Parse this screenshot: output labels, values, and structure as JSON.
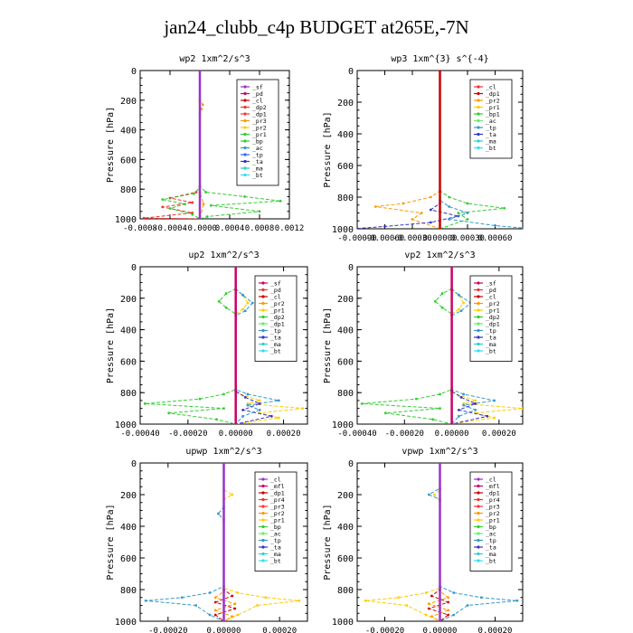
{
  "title": "jan24_clubb_c4p  BUDGET at265E,-7N",
  "chart_data": [
    {
      "type": "line",
      "title": "wp2  1xm^2/s^3",
      "ylabel": "Pressure [hPa]",
      "ylim": [
        1000,
        0
      ],
      "xlim": [
        -0.0008,
        0.0012
      ],
      "xticks": [
        -0.0008,
        -0.0004,
        0.0,
        0.0004,
        0.0008,
        0.0012
      ],
      "xtick_labels": [
        "-0.0008",
        "-0.0004",
        "-0.0000",
        "0.0004",
        "0.0008",
        "0.0012"
      ],
      "yticks": [
        0,
        200,
        400,
        600,
        800,
        1000
      ],
      "ytick_labels": [
        "0",
        "200",
        "400",
        "600",
        "800",
        "1000"
      ],
      "legend": [
        "_sf",
        "_pd",
        "_cl",
        "_dp2",
        "_dp1",
        "_pr3",
        "_pr2",
        "_pr1",
        "_bp",
        "_ac",
        "_tp",
        "_ta",
        "_ma",
        "_bt"
      ],
      "legend_colors": [
        "#9933cc",
        "#cc0066",
        "#cc0000",
        "#ee3333",
        "#ff3333",
        "#ff9900",
        "#ffcc00",
        "#33cc33",
        "#33cc33",
        "#3399cc",
        "#3366ff",
        "#3333cc",
        "#33cccc",
        "#33ddee"
      ],
      "series": [
        {
          "name": "_dp2",
          "color": "#ee3333",
          "x": [
            0,
            0,
            -5e-05,
            -0.0004,
            -0.0001,
            -0.0005,
            -0.0001,
            -0.00075,
            0
          ],
          "y": [
            0,
            780,
            820,
            860,
            890,
            920,
            960,
            995,
            1000
          ]
        },
        {
          "name": "_pr1",
          "color": "#33cc33",
          "x": [
            0,
            0,
            8e-05,
            0.0006,
            0.00108,
            0.00015,
            0.0008,
            0.0001,
            0
          ],
          "y": [
            0,
            780,
            820,
            850,
            880,
            910,
            950,
            985,
            1000
          ]
        },
        {
          "name": "_bp",
          "color": "#33cc33",
          "x": [
            0,
            0,
            -8e-05,
            -0.0005,
            -0.0002,
            -0.0004,
            -0.0001,
            0
          ],
          "y": [
            0,
            790,
            830,
            870,
            900,
            930,
            970,
            1000
          ]
        },
        {
          "name": "_pr3",
          "color": "#ff9900",
          "x": [
            0,
            0,
            4e-05,
            2e-05,
            0,
            0,
            5e-05,
            0
          ],
          "y": [
            0,
            200,
            230,
            260,
            290,
            820,
            900,
            1000
          ]
        },
        {
          "name": "_sf",
          "color": "#9933cc",
          "x": [
            0,
            0
          ],
          "y": [
            0,
            1000
          ]
        }
      ]
    },
    {
      "type": "line",
      "title": "wp3  1xm^{3} s^{-4}",
      "ylabel": "Pressure [hPa]",
      "ylim": [
        1000,
        0
      ],
      "xlim": [
        -0.0009,
        0.0009
      ],
      "xticks": [
        -0.0009,
        -0.0006,
        -0.0003,
        0.0,
        0.0003,
        0.0006
      ],
      "xtick_labels": [
        "-0.00090",
        "-0.00060",
        "-0.00030",
        "0.00000",
        "0.00030",
        "0.00060"
      ],
      "yticks": [
        0,
        200,
        400,
        600,
        800,
        1000
      ],
      "ytick_labels": [
        "0",
        "200",
        "400",
        "600",
        "800",
        "1000"
      ],
      "legend": [
        "_cl",
        "_dp1",
        "_pr2",
        "_pr1",
        "_bp1",
        "_ac",
        "_tp",
        "_ta",
        "_ma",
        "_bt"
      ],
      "legend_colors": [
        "#ee3333",
        "#cc0000",
        "#ff9900",
        "#ffcc00",
        "#33cc33",
        "#66ee66",
        "#3399cc",
        "#3333cc",
        "#33cccc",
        "#33ddee"
      ],
      "series": [
        {
          "name": "_pr1",
          "color": "#33cc33",
          "x": [
            0,
            0,
            0.0001,
            0.0003,
            0.0007,
            0.0002,
            0.0003,
            0
          ],
          "y": [
            0,
            760,
            800,
            840,
            870,
            900,
            940,
            1000
          ]
        },
        {
          "name": "_pr2",
          "color": "#ff9900",
          "x": [
            0,
            0,
            -0.0001,
            -0.0004,
            -0.0007,
            -0.0002,
            -0.0003,
            0
          ],
          "y": [
            0,
            760,
            800,
            840,
            860,
            900,
            940,
            1000
          ]
        },
        {
          "name": "_ta",
          "color": "#3333cc",
          "x": [
            0,
            0,
            -0.0001,
            0.0002,
            -0.0001,
            -0.0006,
            -0.0009
          ],
          "y": [
            0,
            840,
            880,
            920,
            960,
            985,
            998
          ]
        },
        {
          "name": "_tp",
          "color": "#3399cc",
          "x": [
            0,
            0,
            0.0001,
            0.0003,
            0.0001,
            0.0006,
            0.0009
          ],
          "y": [
            0,
            820,
            860,
            900,
            940,
            980,
            995
          ]
        },
        {
          "name": "_cl",
          "color": "#cc0000",
          "x": [
            0,
            0
          ],
          "y": [
            0,
            1000
          ]
        }
      ]
    },
    {
      "type": "line",
      "title": "up2  1xm^2/s^3",
      "ylabel": "Pressure [hPa]",
      "ylim": [
        1000,
        0
      ],
      "xlim": [
        -0.0004,
        0.0003
      ],
      "xticks": [
        -0.0004,
        -0.0002,
        0.0,
        0.0002
      ],
      "xtick_labels": [
        "-0.00040",
        "-0.00020",
        "0.00000",
        "0.00020"
      ],
      "yticks": [
        0,
        200,
        400,
        600,
        800,
        1000
      ],
      "ytick_labels": [
        "0",
        "200",
        "400",
        "600",
        "800",
        "1000"
      ],
      "legend": [
        "_sf",
        "_pd",
        "_cl",
        "_pr2",
        "_pr1",
        "_dp2",
        "_dp1",
        "_tp",
        "_ta",
        "_ma",
        "_bt"
      ],
      "legend_colors": [
        "#cc0066",
        "#ee3333",
        "#cc0000",
        "#ff9900",
        "#ffcc00",
        "#33cc33",
        "#66ee66",
        "#3399cc",
        "#3333cc",
        "#33cccc",
        "#33ddee"
      ],
      "series": [
        {
          "name": "_dp2",
          "color": "#33cc33",
          "x": [
            0,
            0,
            -4e-05,
            -7e-05,
            -4e-05,
            0,
            0,
            -5e-05,
            -0.00015,
            -0.00038,
            -5e-05,
            -0.00028,
            -8e-05,
            0
          ],
          "y": [
            0,
            140,
            170,
            220,
            260,
            300,
            780,
            810,
            840,
            870,
            900,
            930,
            970,
            1000
          ]
        },
        {
          "name": "_pr1",
          "color": "#ffcc00",
          "x": [
            0,
            0,
            3e-05,
            5e-05,
            3e-05,
            0,
            0,
            0.0001,
            5e-05,
            0.00028,
            0.0001,
            0.00018,
            0
          ],
          "y": [
            0,
            150,
            180,
            230,
            270,
            300,
            800,
            850,
            870,
            900,
            930,
            960,
            1000
          ]
        },
        {
          "name": "_tp",
          "color": "#3399cc",
          "x": [
            0,
            0,
            3e-05,
            7e-05,
            4e-05,
            0,
            0,
            5e-05,
            0.00018,
            5e-05,
            0.0001,
            3e-05,
            0
          ],
          "y": [
            0,
            140,
            180,
            230,
            280,
            310,
            780,
            810,
            850,
            880,
            910,
            950,
            1000
          ]
        },
        {
          "name": "_ta",
          "color": "#3333cc",
          "x": [
            0,
            0,
            4e-05,
            0.0001,
            3e-05,
            0.00015,
            0
          ],
          "y": [
            0,
            790,
            830,
            870,
            910,
            950,
            1000
          ]
        },
        {
          "name": "_sf",
          "color": "#cc0066",
          "x": [
            0,
            0
          ],
          "y": [
            0,
            1000
          ]
        }
      ]
    },
    {
      "type": "line",
      "title": "vp2  1xm^2/s^3",
      "ylabel": "Pressure [hPa]",
      "ylim": [
        1000,
        0
      ],
      "xlim": [
        -0.0004,
        0.0003
      ],
      "xticks": [
        -0.0004,
        -0.0002,
        0.0,
        0.0002
      ],
      "xtick_labels": [
        "-0.00040",
        "-0.00020",
        "0.00000",
        "0.00020"
      ],
      "yticks": [
        0,
        200,
        400,
        600,
        800,
        1000
      ],
      "ytick_labels": [
        "0",
        "200",
        "400",
        "600",
        "800",
        "1000"
      ],
      "legend": [
        "_sf",
        "_pd",
        "_cl",
        "_pr2",
        "_pr1",
        "_dp2",
        "_dp1",
        "_tp",
        "_ta",
        "_ma",
        "_bt"
      ],
      "legend_colors": [
        "#cc0066",
        "#ee3333",
        "#cc0000",
        "#ff9900",
        "#ffcc00",
        "#33cc33",
        "#66ee66",
        "#3399cc",
        "#3333cc",
        "#33cccc",
        "#33ddee"
      ],
      "series": [
        {
          "name": "_dp2",
          "color": "#33cc33",
          "x": [
            0,
            0,
            -4e-05,
            -7e-05,
            -4e-05,
            0,
            0,
            -5e-05,
            -0.00015,
            -0.00038,
            -5e-05,
            -0.00028,
            -8e-05,
            0
          ],
          "y": [
            0,
            140,
            170,
            220,
            260,
            300,
            780,
            810,
            840,
            870,
            900,
            930,
            970,
            1000
          ]
        },
        {
          "name": "_pr1",
          "color": "#ffcc00",
          "x": [
            0,
            0,
            3e-05,
            5e-05,
            3e-05,
            0,
            0,
            0.0001,
            5e-05,
            0.0003,
            0.0001,
            0.00018,
            0
          ],
          "y": [
            0,
            150,
            180,
            230,
            270,
            300,
            800,
            850,
            870,
            900,
            930,
            960,
            1000
          ]
        },
        {
          "name": "_tp",
          "color": "#3399cc",
          "x": [
            0,
            0,
            3e-05,
            8e-05,
            4e-05,
            0,
            0,
            5e-05,
            0.00018,
            5e-05,
            0.0001,
            3e-05,
            0
          ],
          "y": [
            0,
            140,
            180,
            230,
            280,
            310,
            780,
            810,
            850,
            880,
            910,
            950,
            1000
          ]
        },
        {
          "name": "_ta",
          "color": "#3333cc",
          "x": [
            0,
            0,
            4e-05,
            0.0001,
            3e-05,
            0.00015,
            0
          ],
          "y": [
            0,
            790,
            830,
            870,
            910,
            950,
            1000
          ]
        },
        {
          "name": "_sf",
          "color": "#cc0066",
          "x": [
            0,
            0
          ],
          "y": [
            0,
            1000
          ]
        }
      ]
    },
    {
      "type": "line",
      "title": "upwp  1xm^2/s^3",
      "ylabel": "Pressure [hPa]",
      "ylim": [
        1000,
        0
      ],
      "xlim": [
        -0.0003,
        0.0003
      ],
      "xticks": [
        -0.0002,
        0.0,
        0.0002
      ],
      "xtick_labels": [
        "-0.00020",
        "0.00000",
        "0.00020"
      ],
      "yticks": [
        0,
        200,
        400,
        600,
        800,
        1000
      ],
      "ytick_labels": [
        "0",
        "200",
        "400",
        "600",
        "800",
        "1000"
      ],
      "legend": [
        "_cl",
        "_mfl",
        "_dp1",
        "_pr4",
        "_pr3",
        "_pr2",
        "_pr1",
        "_bp",
        "_ac",
        "_tp",
        "_ta",
        "_ma",
        "_bt"
      ],
      "legend_colors": [
        "#9933cc",
        "#cc0066",
        "#cc0000",
        "#ee3333",
        "#ff3333",
        "#ff9900",
        "#ffcc00",
        "#33cc33",
        "#66ee66",
        "#3399cc",
        "#3333cc",
        "#33cccc",
        "#33ddee"
      ],
      "series": [
        {
          "name": "_tp",
          "color": "#3399cc",
          "x": [
            0,
            0,
            -2e-05,
            0,
            0,
            -5e-05,
            -0.00015,
            -0.00028,
            -0.0001,
            -5e-05,
            0
          ],
          "y": [
            0,
            280,
            320,
            360,
            780,
            820,
            850,
            870,
            900,
            960,
            1000
          ]
        },
        {
          "name": "_pr1",
          "color": "#ffcc00",
          "x": [
            0,
            0,
            3e-05,
            0,
            0,
            5e-05,
            0.00015,
            0.00027,
            0.00012,
            5e-05,
            0
          ],
          "y": [
            0,
            170,
            200,
            230,
            790,
            820,
            850,
            870,
            900,
            960,
            1000
          ]
        },
        {
          "name": "_dp1",
          "color": "#cc0000",
          "x": [
            0,
            0,
            3e-05,
            -3e-05,
            4e-05,
            -3e-05,
            0
          ],
          "y": [
            0,
            800,
            840,
            880,
            920,
            960,
            1000
          ]
        },
        {
          "name": "_pr2",
          "color": "#ff9900",
          "x": [
            0,
            0,
            -3e-05,
            4e-05,
            -3e-05,
            3e-05,
            0
          ],
          "y": [
            0,
            810,
            850,
            890,
            930,
            970,
            1000
          ]
        },
        {
          "name": "_cl",
          "color": "#9933cc",
          "x": [
            0,
            0
          ],
          "y": [
            0,
            1000
          ]
        }
      ]
    },
    {
      "type": "line",
      "title": "vpwp  1xm^2/s^3",
      "ylabel": "Pressure [hPa]",
      "ylim": [
        1000,
        0
      ],
      "xlim": [
        -0.0003,
        0.0003
      ],
      "xticks": [
        -0.0002,
        0.0,
        0.0002
      ],
      "xtick_labels": [
        "-0.00020",
        "0.00000",
        "0.00020"
      ],
      "yticks": [
        0,
        200,
        400,
        600,
        800,
        1000
      ],
      "ytick_labels": [
        "0",
        "200",
        "400",
        "600",
        "800",
        "1000"
      ],
      "legend": [
        "_cl",
        "_mfl",
        "_dp1",
        "_pr4",
        "_pr3",
        "_pr2",
        "_pr1",
        "_bp",
        "_ac",
        "_tp",
        "_ta",
        "_ma",
        "_bt"
      ],
      "legend_colors": [
        "#9933cc",
        "#cc0066",
        "#cc0000",
        "#ee3333",
        "#ff3333",
        "#ff9900",
        "#ffcc00",
        "#33cc33",
        "#66ee66",
        "#3399cc",
        "#3333cc",
        "#33cccc",
        "#33ddee"
      ],
      "series": [
        {
          "name": "_pr1",
          "color": "#ffcc00",
          "x": [
            0,
            0,
            -2e-05,
            0,
            0,
            -5e-05,
            -0.00015,
            -0.00027,
            -0.00012,
            -5e-05,
            0
          ],
          "y": [
            0,
            170,
            200,
            240,
            790,
            820,
            850,
            870,
            900,
            960,
            1000
          ]
        },
        {
          "name": "_tp",
          "color": "#3399cc",
          "x": [
            0,
            0,
            -4e-05,
            0,
            0,
            5e-05,
            0.00015,
            0.00028,
            0.0001,
            5e-05,
            0
          ],
          "y": [
            0,
            160,
            200,
            230,
            780,
            820,
            850,
            870,
            900,
            960,
            1000
          ]
        },
        {
          "name": "_dp1",
          "color": "#cc0000",
          "x": [
            0,
            0,
            -3e-05,
            3e-05,
            -4e-05,
            3e-05,
            0
          ],
          "y": [
            0,
            800,
            840,
            880,
            920,
            960,
            1000
          ]
        },
        {
          "name": "_pr2",
          "color": "#ff9900",
          "x": [
            0,
            0,
            3e-05,
            -4e-05,
            3e-05,
            -3e-05,
            0
          ],
          "y": [
            0,
            810,
            850,
            890,
            930,
            970,
            1000
          ]
        },
        {
          "name": "_cl",
          "color": "#9933cc",
          "x": [
            0,
            0
          ],
          "y": [
            0,
            1000
          ]
        }
      ]
    }
  ]
}
